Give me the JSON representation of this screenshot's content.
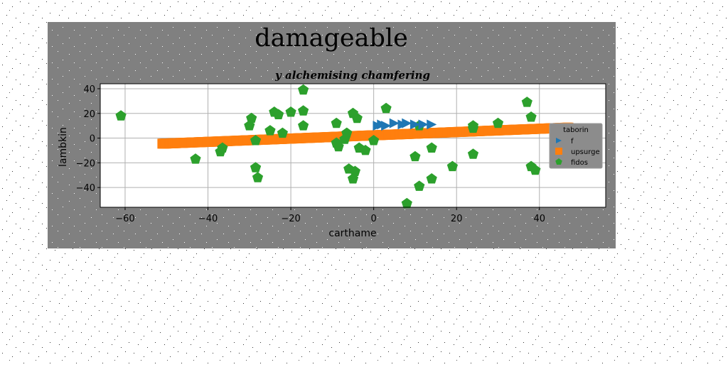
{
  "chart_data": {
    "type": "scatter",
    "title": "damageable",
    "subtitle": "y alchemising chamfering",
    "xlabel": "carthame",
    "ylabel": "lambkin",
    "xlim": [
      -66,
      56
    ],
    "ylim": [
      -56,
      44
    ],
    "xticks": [
      -60,
      -40,
      -20,
      0,
      20,
      40
    ],
    "yticks": [
      -40,
      -20,
      0,
      20,
      40
    ],
    "xtick_labels": [
      "−60",
      "−40",
      "−20",
      "0",
      "20",
      "40"
    ],
    "ytick_labels": [
      "−40",
      "−20",
      "0",
      "20",
      "40"
    ],
    "grid": true,
    "legend": {
      "title": "taborin",
      "placement": "right"
    },
    "colors": {
      "figure_bg": "#808080",
      "axes_bg": "#ffffff",
      "grid": "#b0b0b0",
      "f": "#1f77b4",
      "upsurge": "#ff7f0e",
      "fidos": "#2ca02c",
      "legend_bg": "#8c8c8c"
    },
    "series": [
      {
        "name": "f",
        "marker": "triangle-right",
        "points": [
          [
            1,
            10
          ],
          [
            2,
            11
          ],
          [
            3,
            10
          ],
          [
            5,
            12
          ],
          [
            7,
            11
          ],
          [
            8,
            12
          ],
          [
            10,
            11
          ],
          [
            12,
            11
          ],
          [
            14,
            11
          ]
        ]
      },
      {
        "name": "upsurge",
        "marker": "square",
        "line": {
          "x_start": -51,
          "y_start": -4.5,
          "x_end": 47,
          "y_end": 8.5,
          "count": 400
        }
      },
      {
        "name": "fidos",
        "marker": "pentagon",
        "points": [
          [
            -61,
            18
          ],
          [
            -43,
            -17
          ],
          [
            -37,
            -11
          ],
          [
            -36.5,
            -8
          ],
          [
            -29.5,
            16
          ],
          [
            -30,
            10
          ],
          [
            -28.5,
            -2
          ],
          [
            -28.5,
            -24
          ],
          [
            -28,
            -32
          ],
          [
            -25,
            6
          ],
          [
            -24,
            21
          ],
          [
            -23,
            19
          ],
          [
            -22,
            4
          ],
          [
            -20,
            21
          ],
          [
            -17,
            39
          ],
          [
            -17,
            22
          ],
          [
            -17,
            10
          ],
          [
            -9,
            12
          ],
          [
            -9,
            -4
          ],
          [
            -8.5,
            -7
          ],
          [
            -7,
            -1
          ],
          [
            -6.5,
            4
          ],
          [
            -6,
            -25
          ],
          [
            -5,
            20
          ],
          [
            -4.5,
            -27
          ],
          [
            -5,
            -33
          ],
          [
            -4,
            16
          ],
          [
            -3.5,
            -8
          ],
          [
            -2,
            -10
          ],
          [
            0,
            -2
          ],
          [
            3,
            24
          ],
          [
            10,
            -15
          ],
          [
            11,
            -39
          ],
          [
            11,
            10
          ],
          [
            14,
            -8
          ],
          [
            14,
            -33
          ],
          [
            8,
            -53
          ],
          [
            19,
            -23
          ],
          [
            24,
            10
          ],
          [
            24,
            8
          ],
          [
            24,
            -13
          ],
          [
            30,
            12
          ],
          [
            37,
            29
          ],
          [
            38,
            17
          ],
          [
            38,
            -23
          ],
          [
            39,
            -26
          ]
        ]
      }
    ]
  }
}
